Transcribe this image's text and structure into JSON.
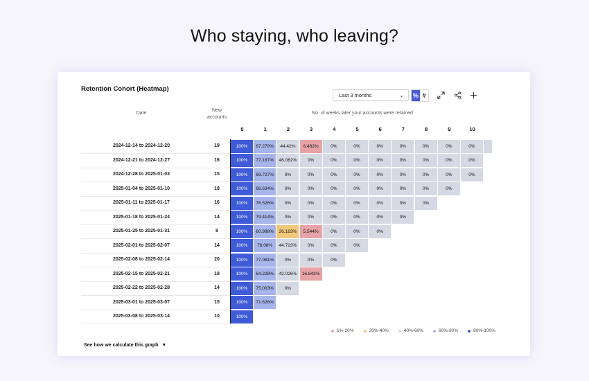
{
  "page": {
    "headline": "Who staying, who leaving?"
  },
  "card": {
    "title": "Retention Cohort (Heatmap)",
    "range_select": {
      "value": "Last 3 months",
      "icon": "chevron-down-icon"
    },
    "mode_toggle": {
      "percent_label": "%",
      "count_label": "#",
      "selected": "%"
    },
    "tools": [
      {
        "name": "expand-icon",
        "glyph": "⤢"
      },
      {
        "name": "share-icon",
        "glyph": "⋖"
      },
      {
        "name": "add-icon",
        "glyph": "+"
      }
    ],
    "headers": {
      "date": "Date",
      "accounts_line1": "New",
      "accounts_line2": "accounts",
      "weeks": "No. of weeks later your accounts were retained"
    },
    "week_labels": [
      "0",
      "1",
      "2",
      "3",
      "4",
      "5",
      "6",
      "7",
      "8",
      "9",
      "10"
    ],
    "legend": [
      {
        "label": "1%-20%",
        "color": "#e8a3a6"
      },
      {
        "label": "20%-40%",
        "color": "#f2c779"
      },
      {
        "label": "40%-60%",
        "color": "#d5d9e4"
      },
      {
        "label": "60%-80%",
        "color": "#a8b5ea"
      },
      {
        "label": "80%-100%",
        "color": "#3f5bd8"
      }
    ],
    "footer_link": "See how we calculate this graph"
  },
  "cohorts": [
    {
      "date": "2024-12-14 to 2024-12-20",
      "accounts": "19",
      "values": [
        "100%",
        "67.278%",
        "44.42%",
        "6.462%",
        "0%",
        "0%",
        "0%",
        "0%",
        "0%",
        "0%",
        "0%",
        ""
      ]
    },
    {
      "date": "2024-12-21 to 2024-12-27",
      "accounts": "16",
      "values": [
        "100%",
        "77.187%",
        "46.062%",
        "0%",
        "0%",
        "0%",
        "0%",
        "0%",
        "0%",
        "0%",
        "0%"
      ]
    },
    {
      "date": "2024-12-28 to 2025-01-03",
      "accounts": "15",
      "values": [
        "100%",
        "69.727%",
        "0%",
        "0%",
        "0%",
        "0%",
        "0%",
        "0%",
        "0%",
        "0%",
        "0%"
      ]
    },
    {
      "date": "2025-01-04 to 2025-01-10",
      "accounts": "18",
      "values": [
        "100%",
        "66.634%",
        "0%",
        "0%",
        "0%",
        "0%",
        "0%",
        "0%",
        "0%",
        "0%"
      ]
    },
    {
      "date": "2025-01-11 to 2025-01-17",
      "accounts": "16",
      "values": [
        "100%",
        "76.526%",
        "0%",
        "0%",
        "0%",
        "0%",
        "0%",
        "0%",
        "0%"
      ]
    },
    {
      "date": "2025-01-18 to 2025-01-24",
      "accounts": "14",
      "values": [
        "100%",
        "79.414%",
        "0%",
        "0%",
        "0%",
        "0%",
        "0%",
        "0%"
      ]
    },
    {
      "date": "2025-01-25 to 2025-01-31",
      "accounts": "8",
      "values": [
        "100%",
        "60.998%",
        "26.163%",
        "5.544%",
        "0%",
        "0%",
        "0%"
      ]
    },
    {
      "date": "2025-02-01 to 2025-02-07",
      "accounts": "14",
      "values": [
        "100%",
        "76.08%",
        "44.723%",
        "0%",
        "0%",
        "0%"
      ]
    },
    {
      "date": "2025-02-08 to 2025-02-14",
      "accounts": "20",
      "values": [
        "100%",
        "77.081%",
        "0%",
        "0%",
        "0%"
      ]
    },
    {
      "date": "2025-02-15 to 2025-02-21",
      "accounts": "18",
      "values": [
        "100%",
        "64.228%",
        "42.026%",
        "16.843%"
      ]
    },
    {
      "date": "2025-02-22 to 2025-02-28",
      "accounts": "14",
      "values": [
        "100%",
        "75.003%",
        "0%"
      ]
    },
    {
      "date": "2025-03-01 to 2025-03-07",
      "accounts": "15",
      "values": [
        "100%",
        "71.626%"
      ]
    },
    {
      "date": "2025-03-08 to 2025-03-14",
      "accounts": "10",
      "values": [
        "100%"
      ]
    }
  ]
}
